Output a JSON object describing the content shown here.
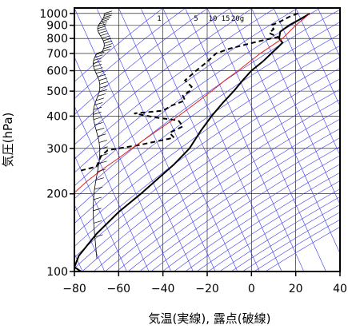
{
  "chart_data": {
    "type": "line",
    "title": "",
    "xlabel": "気温(実線), 露点(破線)",
    "ylabel": "気圧(hPa)",
    "xlim": [
      -80,
      40
    ],
    "ylim": [
      1050,
      100
    ],
    "y_scale": "log",
    "x_ticks": [
      "−80",
      "−60",
      "−40",
      "−20",
      "0",
      "20",
      "40"
    ],
    "x_tick_values": [
      -80,
      -60,
      -40,
      -20,
      0,
      20,
      40
    ],
    "y_ticks": [
      "100",
      "200",
      "300",
      "400",
      "500",
      "600",
      "700",
      "800",
      "900",
      "1000"
    ],
    "y_tick_values": [
      100,
      200,
      300,
      400,
      500,
      600,
      700,
      800,
      900,
      1000
    ],
    "grid": true,
    "mixing_ratio_labels": [
      "1",
      "5",
      "10",
      "15",
      "20g"
    ],
    "mixing_ratio_values": [
      1,
      5,
      10,
      15,
      20
    ],
    "series": [
      {
        "role": "temperature",
        "style": "solid",
        "color": "#000000",
        "points": [
          [
            26.5,
            1000
          ],
          [
            22,
            950
          ],
          [
            17,
            900
          ],
          [
            13,
            850
          ],
          [
            12.5,
            800
          ],
          [
            14,
            770
          ],
          [
            12,
            740
          ],
          [
            9,
            700
          ],
          [
            5,
            650
          ],
          [
            0,
            600
          ],
          [
            -4,
            550
          ],
          [
            -8,
            500
          ],
          [
            -13,
            450
          ],
          [
            -18,
            400
          ],
          [
            -23,
            350
          ],
          [
            -28,
            300
          ],
          [
            -35,
            260
          ],
          [
            -42,
            230
          ],
          [
            -50,
            200
          ],
          [
            -60,
            170
          ],
          [
            -70,
            140
          ],
          [
            -78,
            115
          ],
          [
            -80,
            104
          ],
          [
            -77,
            100
          ]
        ]
      },
      {
        "role": "dewpoint",
        "style": "dashed",
        "color": "#000000",
        "points": [
          [
            21,
            1000
          ],
          [
            17,
            970
          ],
          [
            13,
            930
          ],
          [
            9,
            900
          ],
          [
            10,
            870
          ],
          [
            8,
            840
          ],
          [
            12,
            810
          ],
          [
            6,
            790
          ],
          [
            -2,
            760
          ],
          [
            -10,
            730
          ],
          [
            -16,
            700
          ],
          [
            -20,
            650
          ],
          [
            -25,
            600
          ],
          [
            -30,
            550
          ],
          [
            -27,
            520
          ],
          [
            -28,
            500
          ],
          [
            -31,
            480
          ],
          [
            -30,
            460
          ],
          [
            -36,
            440
          ],
          [
            -40,
            420
          ],
          [
            -53,
            410
          ],
          [
            -43,
            395
          ],
          [
            -33,
            385
          ],
          [
            -31,
            365
          ],
          [
            -37,
            345
          ],
          [
            -35,
            330
          ],
          [
            -50,
            310
          ],
          [
            -65,
            295
          ],
          [
            -68,
            280
          ],
          [
            -70,
            255
          ],
          [
            -78,
            245
          ]
        ]
      },
      {
        "role": "parcel",
        "style": "solid",
        "color": "#e02020",
        "points": [
          [
            26.5,
            1000
          ],
          [
            20,
            900
          ],
          [
            14,
            800
          ],
          [
            4,
            700
          ],
          [
            -6,
            600
          ],
          [
            -12,
            550
          ],
          [
            -18,
            500
          ],
          [
            -25,
            450
          ],
          [
            -33,
            400
          ],
          [
            -43,
            350
          ],
          [
            -54,
            300
          ],
          [
            -60,
            275
          ],
          [
            -67,
            250
          ],
          [
            -74,
            225
          ],
          [
            -80,
            202
          ],
          [
            -86,
            180
          ]
        ]
      }
    ],
    "background_lines": {
      "color": "#3a3aee",
      "dry_adiabats_theta_K": [
        230,
        240,
        250,
        260,
        270,
        280,
        290,
        300,
        310,
        320,
        330,
        340,
        350,
        360,
        370,
        380,
        390,
        400,
        410,
        420,
        430,
        440,
        450,
        460,
        470,
        480,
        490,
        500,
        510,
        520,
        530,
        540
      ],
      "isotherms_C": [
        -140,
        -130,
        -120,
        -110,
        -100,
        -90,
        -80,
        -70,
        -60,
        -50,
        -40,
        -30,
        -20,
        -10,
        0,
        10,
        20,
        30,
        40
      ]
    },
    "wind_profile": "wind barbs along the left side at temperature -68 to -72"
  }
}
